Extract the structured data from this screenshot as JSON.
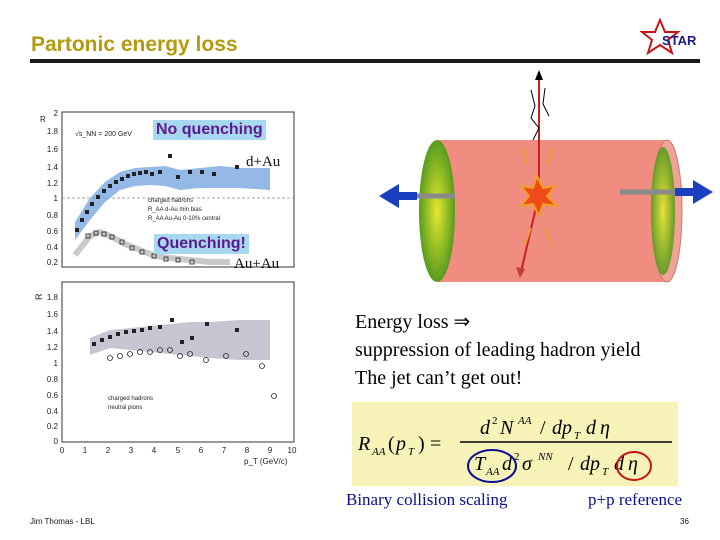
{
  "slide": {
    "title": "Partonic energy loss",
    "logo_text": "STAR",
    "annotations": {
      "no_quenching": "No quenching",
      "quenching": "Quenching!",
      "dau": "d+Au",
      "auau": "Au+Au"
    },
    "text_lines": [
      "Energy loss ⇒",
      "suppression of leading hadron yield",
      "The jet can’t get out!"
    ],
    "captions": {
      "binary": "Binary collision scaling",
      "pp": "p+p reference"
    },
    "footer": {
      "author": "Jim Thomas - LBL",
      "page": "36"
    },
    "plot": {
      "top_axis_label": "R",
      "side_axis_label": "R",
      "side_axis_sub": "AA",
      "energy_label": "√s_NN = 200 GeV",
      "top_legend": [
        "charged hadrons",
        "R_AA d-Au min bias",
        "R_AA Au-Au 0-10% central"
      ],
      "bottom_legend": [
        "charged hadrons",
        "neutral pions"
      ],
      "x_ticks": [
        "0",
        "1",
        "2",
        "3",
        "4",
        "5",
        "6",
        "7",
        "8",
        "9",
        "10"
      ],
      "x_axis_label": "p_T (GeV/c)",
      "y_ticks_top": [
        "2",
        "1.8",
        "1.6",
        "1.4",
        "1.2",
        "1",
        "0.8",
        "0.6",
        "0.4",
        "0.2"
      ],
      "y_ticks_bottom": [
        "1.8",
        "1.6",
        "1.4",
        "1.2",
        "1",
        "0.8",
        "0.6",
        "0.4",
        "0.2",
        "0"
      ]
    },
    "colors": {
      "title": "#b59a10",
      "tag_bg": "#a8d8f0",
      "tag_text": "#5b1a8c",
      "caption": "#0c0c96",
      "formula_bg": "#f7f2b8"
    }
  }
}
